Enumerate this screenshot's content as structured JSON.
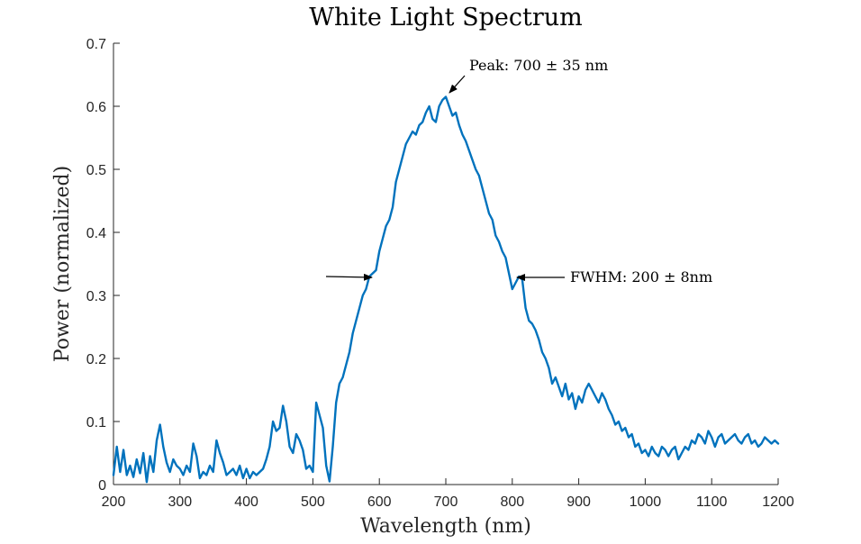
{
  "chart_data": {
    "type": "line",
    "title": "White Light Spectrum",
    "xlabel": "Wavelength (nm)",
    "ylabel": "Power (normalized)",
    "xlim": [
      200,
      1200
    ],
    "ylim": [
      0,
      0.7
    ],
    "xticks": [
      200,
      300,
      400,
      500,
      600,
      700,
      800,
      900,
      1000,
      1100,
      1200
    ],
    "yticks": [
      0,
      0.1,
      0.2,
      0.3,
      0.4,
      0.5,
      0.6,
      0.7
    ],
    "xtick_labels": [
      "200",
      "300",
      "400",
      "500",
      "600",
      "700",
      "800",
      "900",
      "1000",
      "1100",
      "1200"
    ],
    "ytick_labels": [
      "0",
      "0.1",
      "0.2",
      "0.3",
      "0.4",
      "0.5",
      "0.6",
      "0.7"
    ],
    "grid": false,
    "colors": {
      "series": "#0072BD",
      "axis": "#262626",
      "annotation": "#000000"
    },
    "series": [
      {
        "x": [
          200,
          205,
          210,
          215,
          220,
          225,
          230,
          235,
          240,
          245,
          250,
          255,
          260,
          265,
          270,
          275,
          280,
          285,
          290,
          295,
          300,
          305,
          310,
          315,
          320,
          325,
          330,
          335,
          340,
          345,
          350,
          355,
          360,
          365,
          370,
          375,
          380,
          385,
          390,
          395,
          400,
          405,
          410,
          415,
          420,
          425,
          430,
          435,
          440,
          445,
          450,
          455,
          460,
          465,
          470,
          475,
          480,
          485,
          490,
          495,
          500,
          505,
          510,
          515,
          520,
          525,
          530,
          535,
          540,
          545,
          550,
          555,
          560,
          565,
          570,
          575,
          580,
          585,
          590,
          595,
          600,
          605,
          610,
          615,
          620,
          625,
          630,
          635,
          640,
          645,
          650,
          655,
          660,
          665,
          670,
          675,
          680,
          685,
          690,
          695,
          700,
          705,
          710,
          715,
          720,
          725,
          730,
          735,
          740,
          745,
          750,
          755,
          760,
          765,
          770,
          775,
          780,
          785,
          790,
          795,
          800,
          805,
          810,
          815,
          820,
          825,
          830,
          835,
          840,
          845,
          850,
          855,
          860,
          865,
          870,
          875,
          880,
          885,
          890,
          895,
          900,
          905,
          910,
          915,
          920,
          925,
          930,
          935,
          940,
          945,
          950,
          955,
          960,
          965,
          970,
          975,
          980,
          985,
          990,
          995,
          1000,
          1005,
          1010,
          1015,
          1020,
          1025,
          1030,
          1035,
          1040,
          1045,
          1050,
          1055,
          1060,
          1065,
          1070,
          1075,
          1080,
          1085,
          1090,
          1095,
          1100,
          1105,
          1110,
          1115,
          1120,
          1125,
          1130,
          1135,
          1140,
          1145,
          1150,
          1155,
          1160,
          1165,
          1170,
          1175,
          1180,
          1185,
          1190,
          1195,
          1200
        ],
        "y": [
          0.015,
          0.06,
          0.02,
          0.055,
          0.015,
          0.03,
          0.012,
          0.04,
          0.018,
          0.05,
          0.004,
          0.045,
          0.02,
          0.07,
          0.095,
          0.06,
          0.035,
          0.02,
          0.04,
          0.03,
          0.025,
          0.015,
          0.03,
          0.02,
          0.065,
          0.045,
          0.01,
          0.02,
          0.015,
          0.03,
          0.02,
          0.07,
          0.05,
          0.035,
          0.015,
          0.02,
          0.025,
          0.015,
          0.03,
          0.01,
          0.025,
          0.01,
          0.02,
          0.015,
          0.02,
          0.025,
          0.04,
          0.06,
          0.1,
          0.085,
          0.09,
          0.125,
          0.1,
          0.06,
          0.05,
          0.08,
          0.07,
          0.055,
          0.025,
          0.03,
          0.02,
          0.13,
          0.11,
          0.09,
          0.03,
          0.005,
          0.06,
          0.13,
          0.16,
          0.17,
          0.19,
          0.21,
          0.24,
          0.26,
          0.28,
          0.3,
          0.31,
          0.33,
          0.335,
          0.34,
          0.37,
          0.39,
          0.41,
          0.42,
          0.44,
          0.48,
          0.5,
          0.52,
          0.54,
          0.55,
          0.56,
          0.555,
          0.57,
          0.575,
          0.59,
          0.6,
          0.58,
          0.575,
          0.6,
          0.61,
          0.615,
          0.6,
          0.585,
          0.59,
          0.57,
          0.555,
          0.545,
          0.53,
          0.515,
          0.5,
          0.49,
          0.47,
          0.45,
          0.43,
          0.42,
          0.395,
          0.385,
          0.37,
          0.36,
          0.335,
          0.31,
          0.32,
          0.33,
          0.325,
          0.28,
          0.26,
          0.255,
          0.245,
          0.23,
          0.21,
          0.2,
          0.185,
          0.16,
          0.17,
          0.155,
          0.14,
          0.16,
          0.135,
          0.145,
          0.12,
          0.14,
          0.13,
          0.15,
          0.16,
          0.15,
          0.14,
          0.13,
          0.145,
          0.135,
          0.12,
          0.11,
          0.095,
          0.1,
          0.085,
          0.09,
          0.075,
          0.08,
          0.06,
          0.065,
          0.05,
          0.055,
          0.045,
          0.06,
          0.05,
          0.045,
          0.06,
          0.055,
          0.045,
          0.055,
          0.06,
          0.04,
          0.05,
          0.06,
          0.055,
          0.07,
          0.065,
          0.08,
          0.075,
          0.065,
          0.085,
          0.075,
          0.06,
          0.075,
          0.08,
          0.065,
          0.07,
          0.075,
          0.08,
          0.07,
          0.065,
          0.075,
          0.08,
          0.065,
          0.07,
          0.06,
          0.065,
          0.075,
          0.07,
          0.065,
          0.07,
          0.065
        ]
      }
    ],
    "annotations": [
      {
        "text": "Peak: 700 ± 35 nm"
      },
      {
        "text": "FWHM: 200 ± 8nm"
      }
    ]
  }
}
